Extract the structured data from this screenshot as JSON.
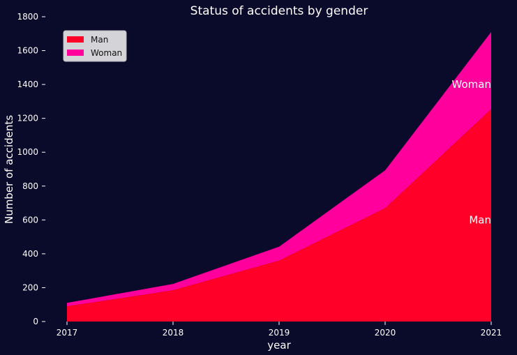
{
  "chart_data": {
    "type": "area",
    "stacked": true,
    "title": "Status of accidents by gender",
    "xlabel": "year",
    "ylabel": "Number of accidents",
    "x": [
      "2017",
      "2018",
      "2019",
      "2020",
      "2021"
    ],
    "ylim": [
      0,
      1800
    ],
    "yticks": [
      0,
      200,
      400,
      600,
      800,
      1000,
      1200,
      1400,
      1600,
      1800
    ],
    "grid": false,
    "legend_position": "top-left",
    "series": [
      {
        "name": "Man",
        "values": [
          90,
          185,
          360,
          670,
          1255
        ],
        "color": "#ff0028"
      },
      {
        "name": "Woman",
        "values": [
          20,
          37,
          82,
          223,
          455
        ],
        "color": "#ff009c"
      }
    ],
    "annotations": [
      {
        "text": "Man",
        "x": "2021",
        "y": 600
      },
      {
        "text": "Woman",
        "x": "2021",
        "y": 1400
      }
    ],
    "background": "#0a0a2b"
  }
}
